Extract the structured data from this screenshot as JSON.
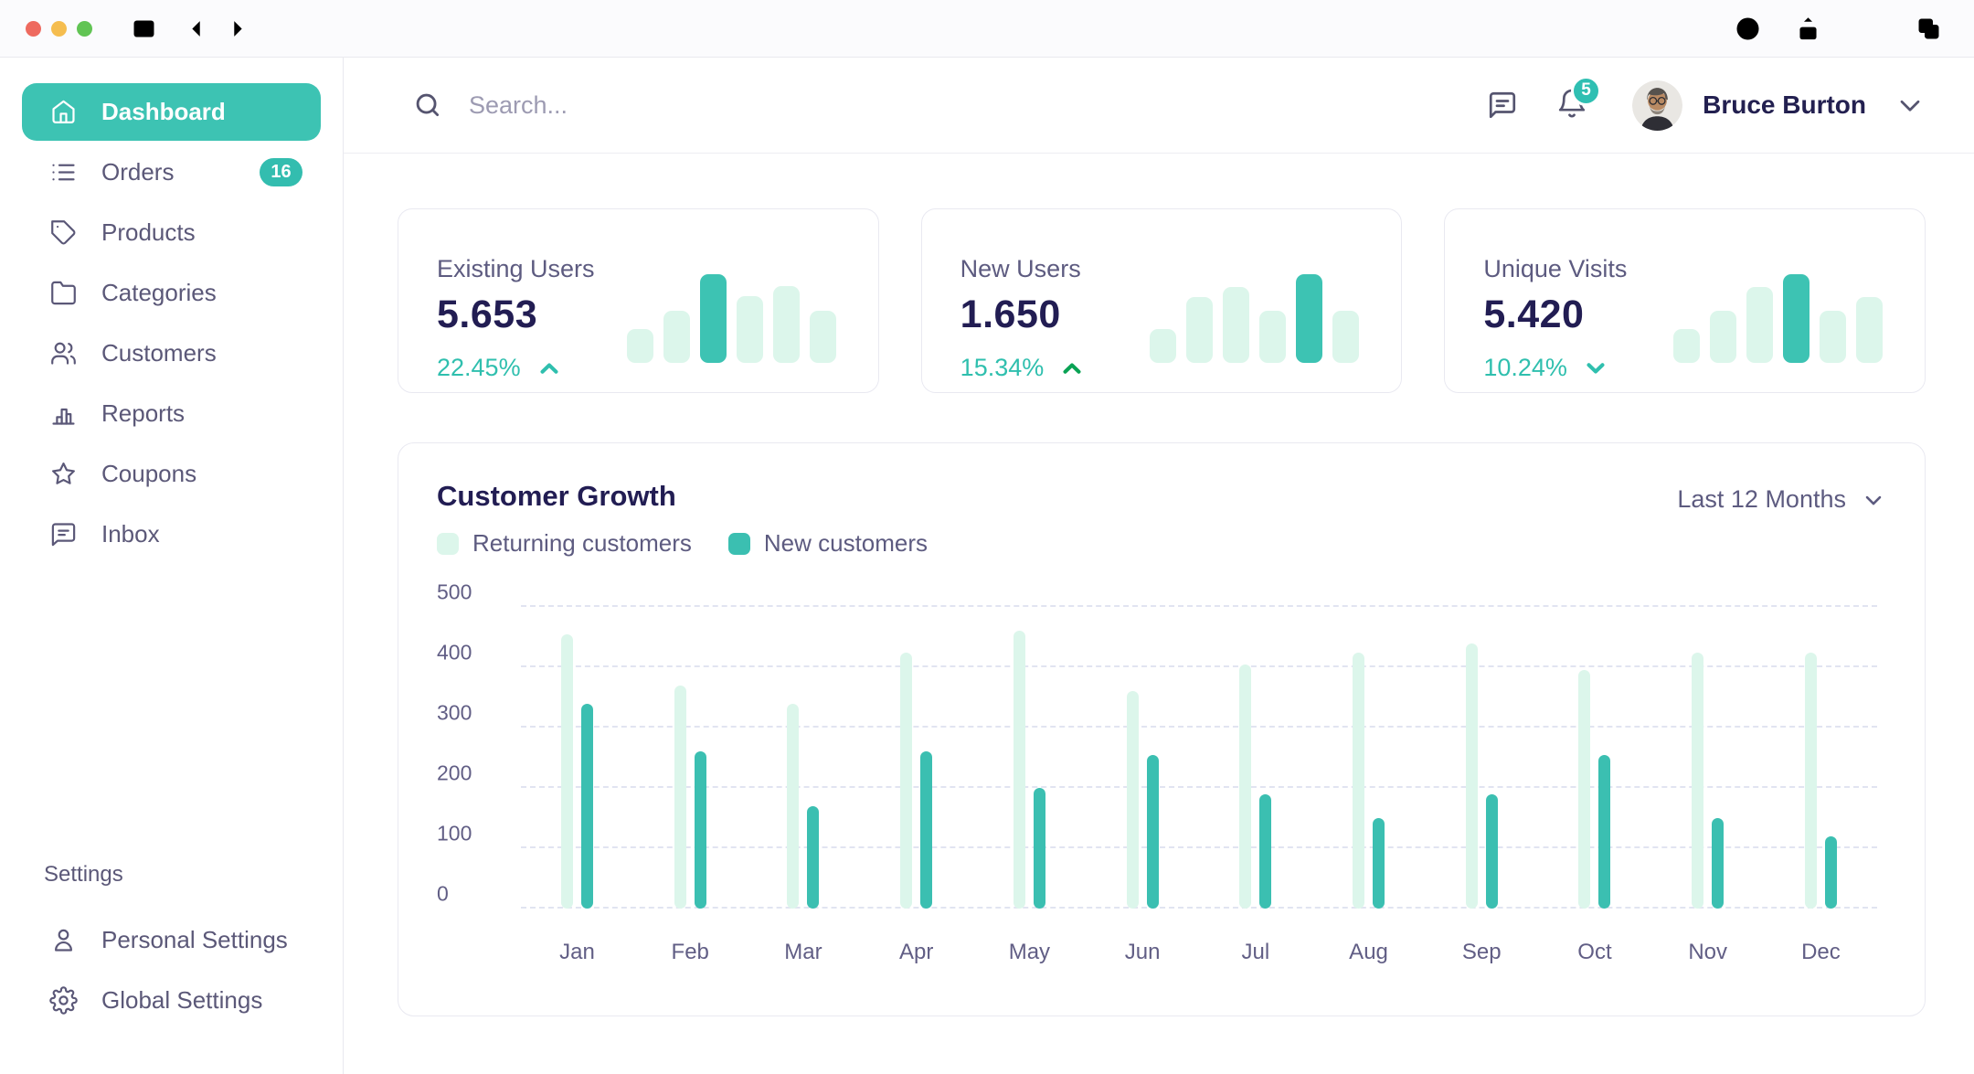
{
  "window": {
    "traffic_lights": [
      "close",
      "minimize",
      "maximize"
    ],
    "left_icons": [
      "sidebar-toggle",
      "back",
      "forward"
    ],
    "right_icons": [
      "download",
      "share",
      "new-tab",
      "tab-overview"
    ]
  },
  "sidebar": {
    "items": [
      {
        "label": "Dashboard",
        "icon": "home",
        "active": true
      },
      {
        "label": "Orders",
        "icon": "list",
        "badge": "16"
      },
      {
        "label": "Products",
        "icon": "tag"
      },
      {
        "label": "Categories",
        "icon": "folder"
      },
      {
        "label": "Customers",
        "icon": "users"
      },
      {
        "label": "Reports",
        "icon": "bar-chart"
      },
      {
        "label": "Coupons",
        "icon": "star"
      },
      {
        "label": "Inbox",
        "icon": "message"
      }
    ],
    "settings_heading": "Settings",
    "settings_items": [
      {
        "label": "Personal Settings",
        "icon": "user"
      },
      {
        "label": "Global Settings",
        "icon": "gear"
      }
    ]
  },
  "header": {
    "search_placeholder": "Search...",
    "notification_count": "5",
    "user_name": "Bruce Burton"
  },
  "stat_cards": [
    {
      "label": "Existing Users",
      "value": "5.653",
      "change": "22.45%",
      "trend": "up",
      "trend_color": "#2fbfae",
      "sparkline": [
        37,
        57,
        97,
        73,
        84,
        57
      ],
      "spark_active_index": 2
    },
    {
      "label": "New Users",
      "value": "1.650",
      "change": "15.34%",
      "trend": "up",
      "trend_color": "#0aa254",
      "sparkline": [
        37,
        72,
        83,
        57,
        97,
        57
      ],
      "spark_active_index": 4
    },
    {
      "label": "Unique Visits",
      "value": "5.420",
      "change": "10.24%",
      "trend": "down",
      "trend_color": "#2fbfae",
      "sparkline": [
        37,
        57,
        83,
        97,
        57,
        72
      ],
      "spark_active_index": 3
    }
  ],
  "chart_card": {
    "title": "Customer Growth",
    "range_label": "Last 12 Months",
    "legend": [
      {
        "label": "Returning customers",
        "color": "#dcf6eb"
      },
      {
        "label": "New customers",
        "color": "#3bbfb1"
      }
    ]
  },
  "chart_data": {
    "type": "bar",
    "title": "Customer Growth",
    "categories": [
      "Jan",
      "Feb",
      "Mar",
      "Apr",
      "May",
      "Jun",
      "Jul",
      "Aug",
      "Sep",
      "Oct",
      "Nov",
      "Dec"
    ],
    "series": [
      {
        "name": "Returning customers",
        "color": "#dcf6eb",
        "values": [
          455,
          370,
          340,
          425,
          460,
          360,
          405,
          425,
          440,
          395,
          425,
          425
        ]
      },
      {
        "name": "New customers",
        "color": "#3bbfb1",
        "values": [
          340,
          260,
          170,
          260,
          200,
          255,
          190,
          150,
          190,
          255,
          150,
          120
        ]
      }
    ],
    "xlabel": "",
    "ylabel": "",
    "ylim": [
      0,
      500
    ],
    "yticks": [
      0,
      100,
      200,
      300,
      400,
      500
    ],
    "grid": "horizontal-dashed",
    "legend_position": "top-left"
  },
  "colors": {
    "accent": "#3dc3b3",
    "accent_light": "#dcf6eb",
    "heading": "#221d53",
    "muted_text": "#5d5b80",
    "chrome_icon": "#56546f"
  }
}
